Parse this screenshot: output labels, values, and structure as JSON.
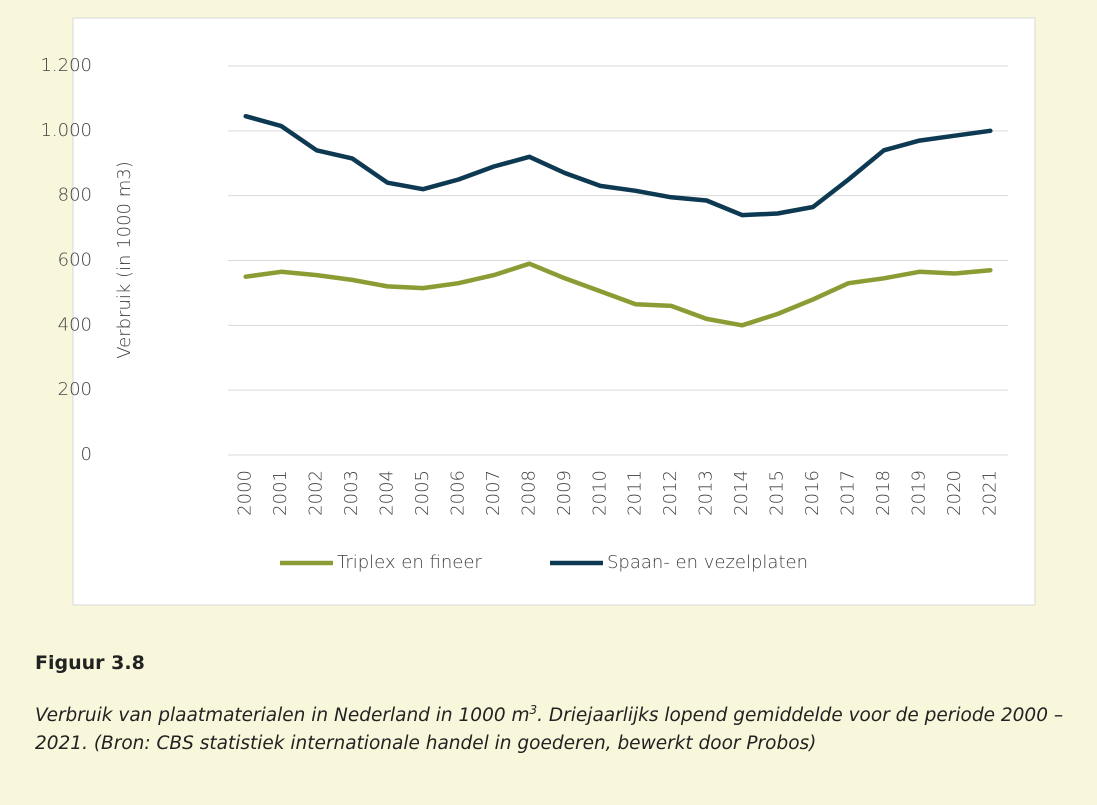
{
  "chart_data": {
    "type": "line",
    "ylabel": "Verbruik (in 1000 m3)",
    "categories": [
      "2000",
      "2001",
      "2002",
      "2003",
      "2004",
      "2005",
      "2006",
      "2007",
      "2008",
      "2009",
      "2010",
      "2011",
      "2012",
      "2013",
      "2014",
      "2015",
      "2016",
      "2017",
      "2018",
      "2019",
      "2020",
      "2021"
    ],
    "series": [
      {
        "name": "Triplex en fineer",
        "color": "#8c9b33",
        "values": [
          550,
          565,
          555,
          540,
          520,
          515,
          530,
          555,
          590,
          545,
          505,
          465,
          460,
          420,
          400,
          435,
          480,
          530,
          545,
          565,
          560,
          570
        ]
      },
      {
        "name": "Spaan- en vezelplaten",
        "color": "#0d3a52",
        "values": [
          1045,
          1015,
          940,
          915,
          840,
          820,
          850,
          890,
          920,
          870,
          830,
          815,
          795,
          785,
          740,
          745,
          765,
          850,
          940,
          970,
          985,
          1000
        ]
      }
    ],
    "ylim": [
      0,
      1200
    ],
    "yticks": [
      0,
      200,
      400,
      600,
      800,
      {
        "value": 1000,
        "label": "1.000"
      },
      {
        "value": 1200,
        "label": "1.200"
      }
    ],
    "grid": true,
    "legend": "bottom"
  },
  "caption": {
    "heading": "Figuur 3.8",
    "text_before": "Verbruik van plaatmaterialen in Nederland in 1000 m",
    "superscript": "3",
    "text_after": ". Driejaarlijks lopend gemiddelde voor de periode 2000 – 2021. (Bron: CBS statistiek internationale handel in goederen, bewerkt door Probos)"
  }
}
